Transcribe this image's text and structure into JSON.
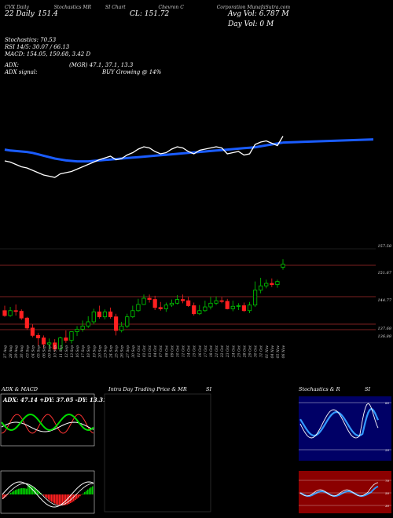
{
  "header": {
    "line1_a": "CVX Daily",
    "line1_b": "Stochastics MR",
    "line1_c": "SI Chart",
    "line1_d": "Chevron C",
    "line1_e": "Corporation",
    "line1_f": "MunafaSutra.com",
    "cl_date": "22 Daily",
    "cl_price": "151.4",
    "cl_label": "CL: 151.72",
    "avg_vol": "Avg Vol: 6.787 M",
    "day_vol": "Day Vol: 0   M",
    "stoch": "Stochastics: 70.53",
    "rsi": "RSI 14/5: 30.07 / 66.13",
    "macd": "MACD: 154.05,  150.68,  3.42  D",
    "adx": "ADX:",
    "mgr": "(MGR) 47.1,  37.1,  13.3",
    "adx_signal": "ADX  signal:",
    "buy": "BUY Growing @ 14%"
  },
  "price_labels": [
    {
      "text": "157.58",
      "value": 157.58
    },
    {
      "text": "151.67",
      "value": 151.67
    },
    {
      "text": "144.77",
      "value": 144.77
    },
    {
      "text": "137.68",
      "value": 137.68
    },
    {
      "text": "136.88",
      "value": 136.88
    }
  ],
  "panels": {
    "adx_title": "ADX  & MACD",
    "adx_values": "ADX: 47.14  +DY: 37.05  -DY: 13.31",
    "intraday_title": "Intra  Day Trading Price  & MR",
    "intraday_si": "SI",
    "stoch_title": "Stochastics & R",
    "stoch_si": "SI",
    "stoch_levels": [
      "80",
      "20",
      "70",
      "50",
      "30"
    ]
  },
  "colors": {
    "up": "#00cc00",
    "down": "#ff2020",
    "ma": "#1a5cff",
    "price_line": "#ffffff",
    "level": "#a52a2a",
    "stoch_bg": "#000066",
    "rsi_bg": "#8b0000"
  },
  "chart_data": {
    "type": "candlestick",
    "x": [
      "27 Aug",
      "28 Aug",
      "29 Aug",
      "30 Aug",
      "03 Sep",
      "04 Sep",
      "05 Sep",
      "06 Sep",
      "09 Sep",
      "10 Sep",
      "11 Sep",
      "12 Sep",
      "13 Sep",
      "16 Sep",
      "17 Sep",
      "18 Sep",
      "19 Sep",
      "20 Sep",
      "23 Sep",
      "24 Sep",
      "25 Sep",
      "26 Sep",
      "27 Sep",
      "30 Sep",
      "01 Oct",
      "02 Oct",
      "03 Oct",
      "04 Oct",
      "07 Oct",
      "08 Oct",
      "09 Oct",
      "10 Oct",
      "11 Oct",
      "14 Oct",
      "15 Oct",
      "16 Oct",
      "17 Oct",
      "18 Oct",
      "21 Oct",
      "22 Oct",
      "23 Oct",
      "24 Oct",
      "25 Oct",
      "28 Oct",
      "29 Oct",
      "30 Oct",
      "31 Oct",
      "01 Nov",
      "04 Nov",
      "05 Nov",
      "06 Nov"
    ],
    "open": [
      147.0,
      146.2,
      147.0,
      146.9,
      145.8,
      144.2,
      143.0,
      142.6,
      141.6,
      141.8,
      140.8,
      142.6,
      142.2,
      143.6,
      144.0,
      144.5,
      145.2,
      146.8,
      146.0,
      146.8,
      146.0,
      143.8,
      144.5,
      146.0,
      147.0,
      148.0,
      149.0,
      148.8,
      147.5,
      147.3,
      147.9,
      148.2,
      148.8,
      148.6,
      147.8,
      146.5,
      147.0,
      147.6,
      148.2,
      148.6,
      148.5,
      147.3,
      147.7,
      147.8,
      147.0,
      147.9,
      150.3,
      151.0,
      151.4,
      151.2,
      154.0
    ],
    "high": [
      147.8,
      147.6,
      148.0,
      147.2,
      146.0,
      144.8,
      143.4,
      143.0,
      142.5,
      142.4,
      142.8,
      143.8,
      143.5,
      144.5,
      145.4,
      146.1,
      147.3,
      147.8,
      147.2,
      147.5,
      146.5,
      145.2,
      146.5,
      147.8,
      148.9,
      149.6,
      149.6,
      149.4,
      148.4,
      148.3,
      148.8,
      149.5,
      149.6,
      149.2,
      148.3,
      147.9,
      148.6,
      149.2,
      149.3,
      149.2,
      148.9,
      148.6,
      148.2,
      148.3,
      148.4,
      151.7,
      152.3,
      152.0,
      152.2,
      152.0,
      155.3
    ],
    "low": [
      146.0,
      146.0,
      146.2,
      145.5,
      143.9,
      142.7,
      141.4,
      141.0,
      140.8,
      140.4,
      140.6,
      141.8,
      141.7,
      142.9,
      143.6,
      144.2,
      144.8,
      145.7,
      145.6,
      145.7,
      143.0,
      143.5,
      144.2,
      145.8,
      146.8,
      147.9,
      148.3,
      147.1,
      147.0,
      146.8,
      147.6,
      148.0,
      148.2,
      147.6,
      146.2,
      146.3,
      146.8,
      147.2,
      147.9,
      148.2,
      147.2,
      146.9,
      147.1,
      146.8,
      146.6,
      147.6,
      149.8,
      150.6,
      150.8,
      150.7,
      153.6
    ],
    "close": [
      146.2,
      147.0,
      146.9,
      145.8,
      144.2,
      143.0,
      142.6,
      141.6,
      141.8,
      140.8,
      142.6,
      142.2,
      143.6,
      144.0,
      144.5,
      145.2,
      146.8,
      146.0,
      146.8,
      146.0,
      143.8,
      144.5,
      146.0,
      147.0,
      148.0,
      149.0,
      148.8,
      147.5,
      147.3,
      147.9,
      148.2,
      148.8,
      148.6,
      147.8,
      146.5,
      147.0,
      147.6,
      148.2,
      148.6,
      148.5,
      147.3,
      147.7,
      147.8,
      147.0,
      147.9,
      150.3,
      151.0,
      151.4,
      151.2,
      151.7,
      154.5
    ],
    "ylim": [
      139.5,
      158.5
    ],
    "levels": [
      157.58,
      151.67,
      144.77,
      137.68,
      136.88
    ],
    "ma_series": [
      51,
      53,
      54,
      55,
      56,
      58,
      61,
      64,
      67,
      70,
      72,
      74,
      75,
      76,
      76,
      76,
      75,
      74,
      73,
      72,
      71,
      70,
      69,
      68,
      67,
      66,
      65,
      64,
      63,
      62,
      61,
      60,
      59,
      58,
      57,
      56,
      55,
      54,
      53,
      52,
      51,
      50,
      49,
      48,
      47,
      46,
      44,
      42,
      40,
      38,
      36
    ],
    "price_line": [
      60,
      62,
      66,
      70,
      72,
      76,
      80,
      84,
      86,
      88,
      82,
      80,
      78,
      74,
      70,
      66,
      62,
      58,
      55,
      52,
      58,
      56,
      50,
      46,
      40,
      36,
      38,
      44,
      48,
      46,
      40,
      36,
      38,
      44,
      48,
      42,
      40,
      38,
      36,
      38,
      48,
      46,
      44,
      50,
      48,
      32,
      28,
      26,
      30,
      34,
      18
    ]
  }
}
